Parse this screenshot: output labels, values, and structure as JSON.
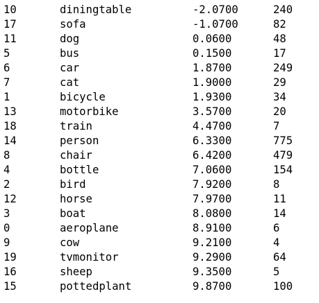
{
  "table": {
    "rows": [
      {
        "id": "10",
        "name": "diningtable",
        "score": "-2.0700",
        "count": "240"
      },
      {
        "id": "17",
        "name": "sofa",
        "score": "-1.0700",
        "count": "82"
      },
      {
        "id": "11",
        "name": "dog",
        "score": "0.0600",
        "count": "48"
      },
      {
        "id": "5",
        "name": "bus",
        "score": "0.1500",
        "count": "17"
      },
      {
        "id": "6",
        "name": "car",
        "score": "1.8700",
        "count": "249"
      },
      {
        "id": "7",
        "name": "cat",
        "score": "1.9000",
        "count": "29"
      },
      {
        "id": "1",
        "name": "bicycle",
        "score": "1.9300",
        "count": "34"
      },
      {
        "id": "13",
        "name": "motorbike",
        "score": "3.5700",
        "count": "20"
      },
      {
        "id": "18",
        "name": "train",
        "score": "4.4700",
        "count": "7"
      },
      {
        "id": "14",
        "name": "person",
        "score": "6.3300",
        "count": "775"
      },
      {
        "id": "8",
        "name": "chair",
        "score": "6.4200",
        "count": "479"
      },
      {
        "id": "4",
        "name": "bottle",
        "score": "7.0600",
        "count": "154"
      },
      {
        "id": "2",
        "name": "bird",
        "score": "7.9200",
        "count": "8"
      },
      {
        "id": "12",
        "name": "horse",
        "score": "7.9700",
        "count": "11"
      },
      {
        "id": "3",
        "name": "boat",
        "score": "8.0800",
        "count": "14"
      },
      {
        "id": "0",
        "name": "aeroplane",
        "score": "8.9100",
        "count": "6"
      },
      {
        "id": "9",
        "name": "cow",
        "score": "9.2100",
        "count": "4"
      },
      {
        "id": "19",
        "name": "tvmonitor",
        "score": "9.2900",
        "count": "64"
      },
      {
        "id": "16",
        "name": "sheep",
        "score": "9.3500",
        "count": "5"
      },
      {
        "id": "15",
        "name": "pottedplant",
        "score": "9.8700",
        "count": "100"
      }
    ]
  }
}
